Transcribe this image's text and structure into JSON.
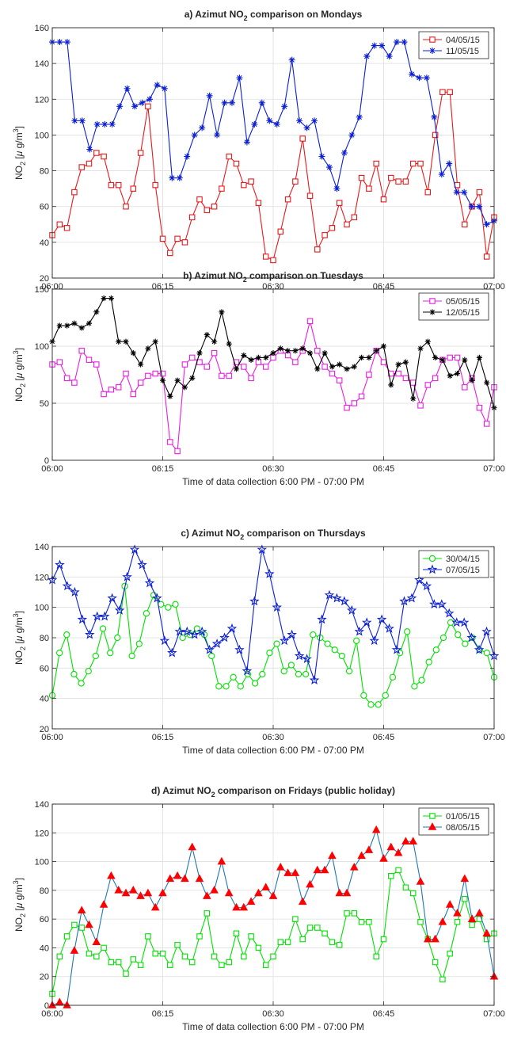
{
  "chart_data": [
    {
      "type": "line",
      "title": "a) Azimut NO₂ comparison on Mondays",
      "title_parts": [
        "a) Azimut NO",
        "2",
        " comparison on Mondays"
      ],
      "xlabel": "Time of data collection 6:00 PM - 07:00 PM",
      "ylabel": "NO₂ [µ g/m³]",
      "ylabel_parts": [
        "NO",
        "2",
        " [",
        "μ",
        " g/m",
        "3",
        "]"
      ],
      "xtick_labels": [
        "06:00",
        "06:15",
        "06:30",
        "06:45",
        "07:00"
      ],
      "xtick_values": [
        0,
        15,
        30,
        45,
        60
      ],
      "yticks": [
        20,
        40,
        60,
        80,
        100,
        120,
        140,
        160
      ],
      "ylim": [
        20,
        160
      ],
      "xlim": [
        0,
        60
      ],
      "grid": true,
      "legend_position": "top-right",
      "series": [
        {
          "name": "04/05/15",
          "color": "#e31a1c",
          "marker": "square",
          "values": [
            44,
            50,
            48,
            68,
            82,
            84,
            90,
            88,
            72,
            72,
            60,
            70,
            90,
            116,
            72,
            42,
            34,
            42,
            40,
            54,
            64,
            58,
            60,
            70,
            88,
            84,
            72,
            74,
            62,
            32,
            30,
            46,
            64,
            74,
            98,
            66,
            36,
            44,
            48,
            62,
            50,
            54,
            76,
            70,
            84,
            64,
            76,
            74,
            74,
            84,
            84,
            68,
            100,
            124,
            124,
            72,
            50,
            60,
            68,
            32,
            54
          ]
        },
        {
          "name": "11/05/15",
          "color": "#0b1fd4",
          "marker": "star",
          "values": [
            152,
            152,
            152,
            108,
            108,
            92,
            106,
            106,
            106,
            116,
            126,
            116,
            118,
            120,
            128,
            126,
            76,
            76,
            88,
            100,
            104,
            122,
            100,
            118,
            118,
            132,
            96,
            106,
            118,
            108,
            106,
            116,
            142,
            108,
            104,
            108,
            88,
            82,
            70,
            90,
            100,
            110,
            144,
            150,
            150,
            144,
            152,
            152,
            134,
            132,
            132,
            110,
            78,
            84,
            68,
            68,
            60,
            60,
            50,
            52
          ]
        }
      ]
    },
    {
      "type": "line",
      "title": "b) Azimut NO₂ comparison on Tuesdays",
      "title_parts": [
        "b) Azimut NO",
        "2",
        " comparison on Tuesdays"
      ],
      "xlabel": "Time of data collection 6:00 PM - 07:00 PM",
      "ylabel": "NO₂ [µ g/m³]",
      "ylabel_parts": [
        "NO",
        "2",
        " [",
        "μ",
        " g/m",
        "3",
        "]"
      ],
      "xtick_labels": [
        "06:00",
        "06:15",
        "06:30",
        "06:45",
        "07:00"
      ],
      "xtick_values": [
        0,
        15,
        30,
        45,
        60
      ],
      "yticks": [
        0,
        50,
        100,
        150
      ],
      "ylim": [
        0,
        150
      ],
      "xlim": [
        0,
        60
      ],
      "grid": true,
      "legend_position": "top-right",
      "series": [
        {
          "name": "05/05/15",
          "color": "#e81ee0",
          "marker": "square",
          "values": [
            84,
            86,
            72,
            68,
            96,
            88,
            84,
            58,
            62,
            64,
            76,
            58,
            68,
            74,
            76,
            76,
            16,
            8,
            84,
            90,
            86,
            82,
            94,
            74,
            74,
            86,
            82,
            72,
            86,
            82,
            90,
            96,
            92,
            86,
            96,
            122,
            96,
            82,
            76,
            70,
            46,
            50,
            56,
            75,
            96,
            86,
            76,
            76,
            72,
            68,
            48,
            66,
            72,
            88,
            90,
            90,
            64,
            72,
            46,
            32,
            64
          ]
        },
        {
          "name": "12/05/15",
          "color": "#000000",
          "marker": "asterisk",
          "values": [
            104,
            118,
            118,
            120,
            116,
            120,
            130,
            142,
            142,
            104,
            104,
            94,
            84,
            98,
            104,
            70,
            56,
            70,
            64,
            72,
            94,
            110,
            104,
            130,
            102,
            80,
            92,
            88,
            90,
            90,
            94,
            98,
            96,
            96,
            98,
            94,
            80,
            94,
            82,
            84,
            80,
            82,
            90,
            90,
            96,
            100,
            66,
            84,
            86,
            54,
            98,
            104,
            90,
            88,
            74,
            76,
            88,
            70,
            90,
            68,
            46
          ]
        }
      ]
    },
    {
      "type": "line",
      "title": "c) Azimut NO₂ comparison on Thursdays",
      "title_parts": [
        "c) Azimut NO",
        "2",
        " comparison on Thursdays"
      ],
      "xlabel": "Time of data collection 6:00 PM - 07:00 PM",
      "ylabel": "NO₂ [µ g/m³]",
      "ylabel_parts": [
        "NO",
        "2",
        " [",
        "μ",
        " g/m",
        "3",
        "]"
      ],
      "xtick_labels": [
        "06:00",
        "06:15",
        "06:30",
        "06:45",
        "07:00"
      ],
      "xtick_values": [
        0,
        15,
        30,
        45,
        60
      ],
      "yticks": [
        20,
        40,
        60,
        80,
        100,
        120,
        140
      ],
      "ylim": [
        20,
        140
      ],
      "xlim": [
        0,
        60
      ],
      "grid": true,
      "legend_position": "top-right",
      "series": [
        {
          "name": "30/04/15",
          "color": "#00e000",
          "marker": "circle",
          "values": [
            42,
            70,
            82,
            56,
            50,
            58,
            68,
            86,
            70,
            80,
            114,
            68,
            76,
            96,
            108,
            102,
            100,
            102,
            80,
            82,
            86,
            82,
            68,
            48,
            48,
            54,
            48,
            56,
            50,
            56,
            70,
            76,
            58,
            62,
            56,
            56,
            82,
            80,
            76,
            72,
            68,
            58,
            78,
            42,
            36,
            36,
            42,
            54,
            70,
            84,
            48,
            52,
            64,
            72,
            80,
            90,
            82,
            76,
            80,
            72,
            70,
            54
          ]
        },
        {
          "name": "07/05/15",
          "color": "#0b1fd4",
          "marker": "pentagram",
          "values": [
            118,
            128,
            114,
            110,
            92,
            82,
            94,
            94,
            106,
            98,
            120,
            138,
            128,
            116,
            106,
            78,
            70,
            84,
            84,
            82,
            84,
            72,
            76,
            80,
            86,
            72,
            58,
            104,
            138,
            122,
            100,
            78,
            82,
            68,
            66,
            52,
            92,
            108,
            106,
            104,
            98,
            84,
            90,
            78,
            92,
            86,
            72,
            104,
            106,
            118,
            114,
            102,
            102,
            96,
            90,
            90,
            80,
            72,
            84,
            68
          ]
        }
      ]
    },
    {
      "type": "line",
      "title": "d) Azimut NO₂ comparison on Fridays (public holiday)",
      "title_parts": [
        "d) Azimut NO",
        "2",
        " comparison on Fridays (public holiday)"
      ],
      "xlabel": "Time of data collection 6:00 PM - 07:00 PM",
      "ylabel": "NO₂ [µ g/m³]",
      "ylabel_parts": [
        "NO",
        "2",
        " [",
        "μ",
        " g/m",
        "3",
        "]"
      ],
      "xtick_labels": [
        "06:00",
        "06:15",
        "06:30",
        "06:45",
        "07:00"
      ],
      "xtick_values": [
        0,
        15,
        30,
        45,
        60
      ],
      "yticks": [
        0,
        20,
        40,
        60,
        80,
        100,
        120,
        140
      ],
      "ylim": [
        0,
        140
      ],
      "xlim": [
        0,
        60
      ],
      "grid": true,
      "legend_position": "top-right",
      "series": [
        {
          "name": "01/05/15",
          "color": "#00e000",
          "marker": "square",
          "values": [
            8,
            34,
            48,
            56,
            54,
            36,
            34,
            40,
            30,
            30,
            22,
            32,
            28,
            48,
            36,
            36,
            28,
            42,
            34,
            30,
            48,
            64,
            34,
            28,
            30,
            50,
            34,
            48,
            40,
            28,
            34,
            44,
            44,
            60,
            46,
            54,
            54,
            50,
            44,
            42,
            64,
            64,
            58,
            58,
            34,
            46,
            90,
            94,
            82,
            78,
            58,
            46,
            30,
            18,
            36,
            58,
            74,
            56,
            60,
            46,
            50
          ]
        },
        {
          "name": "08/05/15",
          "color": "#ff0000",
          "line_color": "#1f77b4",
          "marker": "triangle",
          "values": [
            0,
            2,
            0,
            38,
            66,
            56,
            44,
            70,
            90,
            80,
            78,
            80,
            76,
            78,
            68,
            78,
            88,
            90,
            88,
            110,
            88,
            76,
            80,
            100,
            78,
            68,
            68,
            72,
            78,
            82,
            76,
            96,
            92,
            92,
            72,
            84,
            94,
            94,
            104,
            78,
            78,
            96,
            104,
            108,
            122,
            102,
            110,
            106,
            114,
            114,
            86,
            46,
            46,
            58,
            70,
            64,
            88,
            60,
            64,
            50,
            20
          ]
        }
      ]
    }
  ]
}
